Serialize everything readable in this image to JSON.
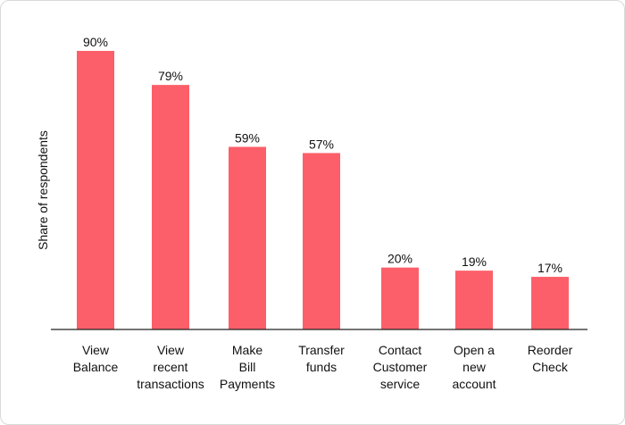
{
  "chart_data": {
    "type": "bar",
    "categories": [
      [
        "View",
        "Balance"
      ],
      [
        "View",
        "recent",
        "transactions"
      ],
      [
        "Make",
        "Bill",
        "Payments"
      ],
      [
        "Transfer",
        "funds"
      ],
      [
        "Contact",
        "Customer",
        "service"
      ],
      [
        "Open a",
        "new",
        "account"
      ],
      [
        "Reorder",
        "Check"
      ]
    ],
    "values": [
      90,
      79,
      59,
      57,
      20,
      19,
      17
    ],
    "value_labels": [
      "90%",
      "79%",
      "59%",
      "57%",
      "20%",
      "19%",
      "17%"
    ],
    "ylabel": "Share of respondents",
    "xlabel": "",
    "ylim": [
      0,
      90
    ],
    "grid": false,
    "bar_color": "#fc5f69",
    "axis_color": "#222222"
  }
}
